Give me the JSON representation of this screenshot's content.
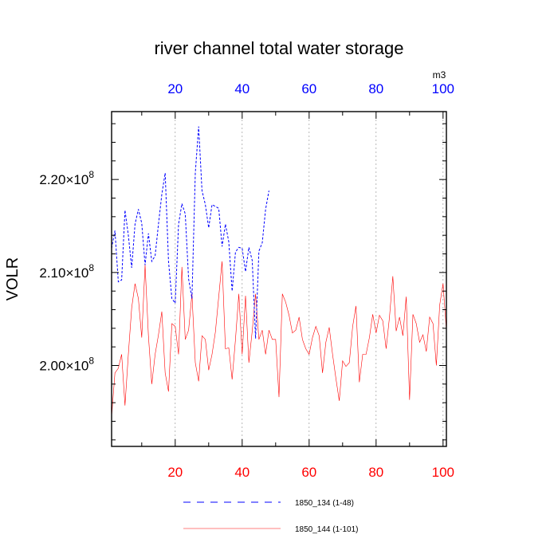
{
  "chart_data": {
    "type": "line",
    "title": "river channel total water storage",
    "ylabel": "VOLR",
    "xlabel": "",
    "unit_label": "m3",
    "xlim": [
      1,
      101
    ],
    "ylim": [
      191300000.0,
      227300000.0
    ],
    "grid": "vertical dotted lines at x ticks",
    "legend_position": "bottom-center",
    "bottom_axis": {
      "ticks": [
        20,
        40,
        60,
        80,
        100
      ],
      "labels": [
        "20",
        "40",
        "60",
        "80",
        "100"
      ],
      "color": "#ff0000"
    },
    "top_axis": {
      "ticks": [
        20,
        40,
        60,
        80,
        100
      ],
      "labels": [
        "20",
        "40",
        "60",
        "80",
        "100"
      ],
      "color": "#0000ff"
    },
    "y_axis": {
      "ticks": [
        200000000.0,
        210000000.0,
        220000000.0
      ],
      "label_mantissas": [
        "2.00",
        "2.10",
        "2.20"
      ],
      "label_times": "×10",
      "label_exponent": "8"
    },
    "series": [
      {
        "name": "1850_134 (1-48)",
        "color": "#0000ff",
        "dash": "dashed",
        "x": [
          1,
          2,
          3,
          4,
          5,
          6,
          7,
          8,
          9,
          10,
          11,
          12,
          13,
          14,
          15,
          16,
          17,
          18,
          19,
          20,
          21,
          22,
          23,
          24,
          25,
          26,
          27,
          28,
          29,
          30,
          31,
          32,
          33,
          34,
          35,
          36,
          37,
          38,
          39,
          40,
          41,
          42,
          43,
          44,
          45,
          46,
          47,
          48
        ],
        "values": [
          212600000.0,
          214500000.0,
          209000000.0,
          209200000.0,
          216700000.0,
          214000000.0,
          210500000.0,
          215200000.0,
          216800000.0,
          215300000.0,
          210800000.0,
          214200000.0,
          211200000.0,
          211800000.0,
          215200000.0,
          218400000.0,
          220700000.0,
          211200000.0,
          207200000.0,
          206700000.0,
          215200000.0,
          217400000.0,
          216300000.0,
          209300000.0,
          207200000.0,
          220700000.0,
          225700000.0,
          218800000.0,
          217300000.0,
          214800000.0,
          217300000.0,
          217100000.0,
          216900000.0,
          212800000.0,
          215200000.0,
          213300000.0,
          208000000.0,
          212200000.0,
          212700000.0,
          212600000.0,
          210100000.0,
          212700000.0,
          211300000.0,
          202900000.0,
          212300000.0,
          213200000.0,
          216800000.0,
          218800000.0
        ]
      },
      {
        "name": "1850_144 (1-101)",
        "color": "#ff0000",
        "dash": "solid",
        "x": [
          1,
          2,
          3,
          4,
          5,
          6,
          7,
          8,
          9,
          10,
          11,
          12,
          13,
          14,
          15,
          16,
          17,
          18,
          19,
          20,
          21,
          22,
          23,
          24,
          25,
          26,
          27,
          28,
          29,
          30,
          31,
          32,
          33,
          34,
          35,
          36,
          37,
          38,
          39,
          40,
          41,
          42,
          43,
          44,
          45,
          46,
          47,
          48,
          49,
          50,
          51,
          52,
          53,
          54,
          55,
          56,
          57,
          58,
          59,
          60,
          61,
          62,
          63,
          64,
          65,
          66,
          67,
          68,
          69,
          70,
          71,
          72,
          73,
          74,
          75,
          76,
          77,
          78,
          79,
          80,
          81,
          82,
          83,
          84,
          85,
          86,
          87,
          88,
          89,
          90,
          91,
          92,
          93,
          94,
          95,
          96,
          97,
          98,
          99,
          100,
          101
        ],
        "values": [
          194500000.0,
          199200000.0,
          199700000.0,
          201200000.0,
          195700000.0,
          201200000.0,
          206200000.0,
          208800000.0,
          207200000.0,
          203000000.0,
          210800000.0,
          203200000.0,
          198000000.0,
          201200000.0,
          203300000.0,
          205800000.0,
          199200000.0,
          197200000.0,
          204500000.0,
          204200000.0,
          201200000.0,
          210600000.0,
          202800000.0,
          203800000.0,
          207700000.0,
          200300000.0,
          198300000.0,
          203200000.0,
          202800000.0,
          199500000.0,
          201200000.0,
          203600000.0,
          207400000.0,
          211200000.0,
          201800000.0,
          201900000.0,
          198500000.0,
          202800000.0,
          207700000.0,
          201200000.0,
          207500000.0,
          200300000.0,
          203700000.0,
          207700000.0,
          202800000.0,
          203800000.0,
          201200000.0,
          203800000.0,
          202800000.0,
          202800000.0,
          196600000.0,
          207700000.0,
          206800000.0,
          205400000.0,
          203500000.0,
          203800000.0,
          205200000.0,
          202800000.0,
          201800000.0,
          201200000.0,
          203000000.0,
          204200000.0,
          203200000.0,
          199200000.0,
          202500000.0,
          204100000.0,
          201200000.0,
          198600000.0,
          196200000.0,
          200500000.0,
          199900000.0,
          200300000.0,
          204200000.0,
          206400000.0,
          198200000.0,
          201200000.0,
          201200000.0,
          203000000.0,
          205500000.0,
          203500000.0,
          205400000.0,
          204800000.0,
          201800000.0,
          205200000.0,
          209600000.0,
          203700000.0,
          205200000.0,
          203200000.0,
          207400000.0,
          196300000.0,
          205500000.0,
          204500000.0,
          202500000.0,
          203300000.0,
          201500000.0,
          205200000.0,
          204500000.0,
          200000000.0,
          206500000.0,
          208800000.0,
          203800000.0
        ]
      }
    ],
    "legend": [
      {
        "label": "1850_134 (1-48)",
        "color": "#0000ff",
        "dash": "dashed"
      },
      {
        "label": "1850_144 (1-101)",
        "color": "#ff0000",
        "dash": "solid"
      }
    ]
  }
}
